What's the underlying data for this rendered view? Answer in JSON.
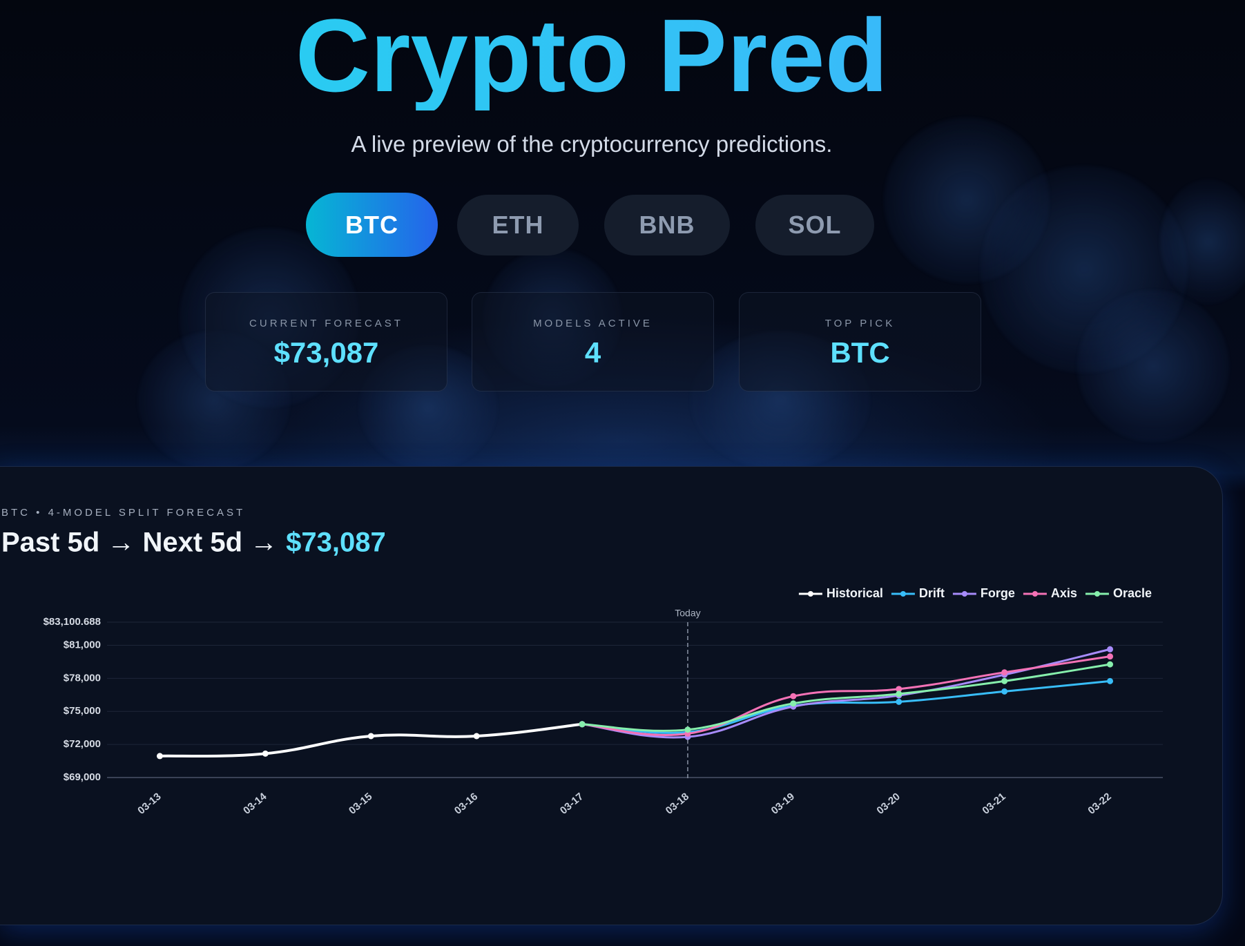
{
  "header": {
    "title": "Crypto Pred",
    "subtitle": "A live preview of the cryptocurrency predictions."
  },
  "tabs": [
    {
      "label": "BTC",
      "active": true
    },
    {
      "label": "ETH",
      "active": false
    },
    {
      "label": "BNB",
      "active": false
    },
    {
      "label": "SOL",
      "active": false
    }
  ],
  "stats": [
    {
      "label": "CURRENT FORECAST",
      "value": "$73,087"
    },
    {
      "label": "MODELS ACTIVE",
      "value": "4"
    },
    {
      "label": "TOP PICK",
      "value": "BTC"
    }
  ],
  "chart_data": {
    "type": "line",
    "kicker": "BTC • 4-MODEL SPLIT FORECAST",
    "title": "Past 5d → Next 5d →",
    "title_value": "$73,087",
    "categories": [
      "03-13",
      "03-14",
      "03-15",
      "03-16",
      "03-17",
      "03-18",
      "03-19",
      "03-20",
      "03-21",
      "03-22"
    ],
    "series": [
      {
        "name": "Historical",
        "color": "#ffffff",
        "values": [
          70950,
          71170,
          72760,
          72760,
          73840,
          null,
          null,
          null,
          null,
          null
        ]
      },
      {
        "name": "Drift",
        "color": "#38bdf8",
        "values": [
          null,
          null,
          null,
          null,
          73840,
          73120,
          75510,
          75870,
          76810,
          77750
        ]
      },
      {
        "name": "Forge",
        "color": "#a78bfa",
        "values": [
          null,
          null,
          null,
          null,
          73840,
          72690,
          75440,
          76450,
          78330,
          80640
        ]
      },
      {
        "name": "Axis",
        "color": "#f472b6",
        "values": [
          null,
          null,
          null,
          null,
          73840,
          72980,
          76380,
          77030,
          78540,
          79990
        ]
      },
      {
        "name": "Oracle",
        "color": "#86efac",
        "values": [
          null,
          null,
          null,
          null,
          73840,
          73340,
          75720,
          76590,
          77750,
          79270
        ]
      }
    ],
    "ylim": [
      69000,
      83100.688
    ],
    "yticks": [
      {
        "value": 69000,
        "label": "$69,000"
      },
      {
        "value": 72000,
        "label": "$72,000"
      },
      {
        "value": 75000,
        "label": "$75,000"
      },
      {
        "value": 78000,
        "label": "$78,000"
      },
      {
        "value": 81000,
        "label": "$81,000"
      },
      {
        "value": 83100.688,
        "label": "$83,100.688"
      }
    ],
    "grid": true,
    "legend": "top-right",
    "annotation": {
      "label": "Today",
      "x": "03-18"
    }
  }
}
